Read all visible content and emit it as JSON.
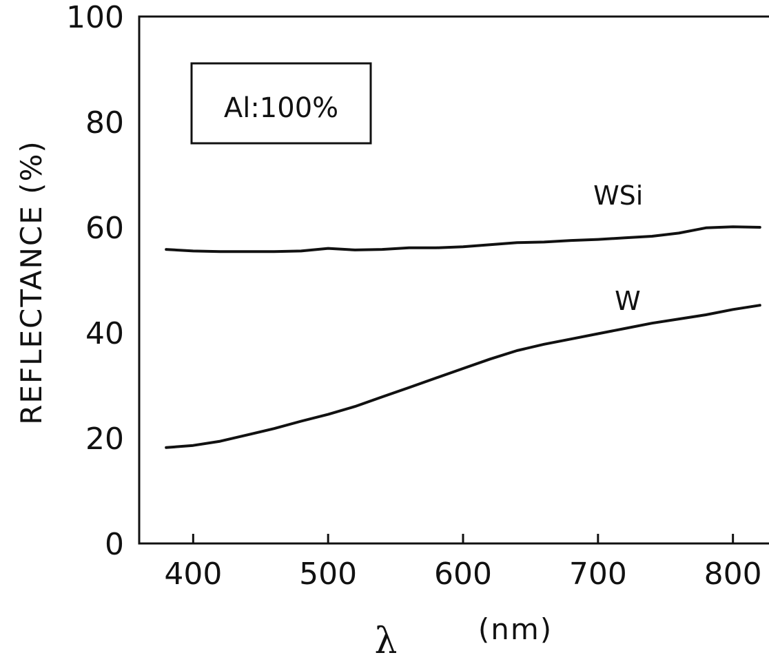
{
  "chart_data": {
    "type": "line",
    "xlabel_symbol": "λ",
    "xlabel_unit": "(nm)",
    "ylabel": "REFLECTANCE (%)",
    "xlim": [
      360,
      840
    ],
    "ylim": [
      0,
      100
    ],
    "x_ticks": [
      400,
      500,
      600,
      700,
      800
    ],
    "x_tick_labels": [
      "400",
      "500",
      "600",
      "700",
      "800"
    ],
    "y_ticks": [
      0,
      20,
      40,
      60,
      80,
      100
    ],
    "y_tick_labels": [
      "0",
      "20",
      "40",
      "60",
      "80",
      "100"
    ],
    "annotation": "Al:100%",
    "line_color": "#111111",
    "series": [
      {
        "name": "WSi",
        "label_at": [
          715,
          66
        ],
        "x": [
          380,
          400,
          420,
          440,
          460,
          480,
          500,
          520,
          540,
          560,
          580,
          600,
          620,
          640,
          660,
          680,
          700,
          720,
          740,
          760,
          780,
          800,
          820
        ],
        "y": [
          55.8,
          55.5,
          55.4,
          55.4,
          55.4,
          55.5,
          56.0,
          55.7,
          55.8,
          56.1,
          56.1,
          56.3,
          56.7,
          57.1,
          57.2,
          57.5,
          57.7,
          58.0,
          58.3,
          58.9,
          59.9,
          60.1,
          60.0
        ]
      },
      {
        "name": "W",
        "label_at": [
          722,
          46
        ],
        "x": [
          380,
          400,
          420,
          440,
          460,
          480,
          500,
          520,
          540,
          560,
          580,
          600,
          620,
          640,
          660,
          680,
          700,
          720,
          740,
          760,
          780,
          800,
          820
        ],
        "y": [
          18.2,
          18.6,
          19.4,
          20.6,
          21.8,
          23.2,
          24.5,
          26.0,
          27.8,
          29.6,
          31.4,
          33.2,
          35.0,
          36.6,
          37.8,
          38.8,
          39.8,
          40.8,
          41.8,
          42.6,
          43.4,
          44.4,
          45.2
        ]
      }
    ]
  }
}
